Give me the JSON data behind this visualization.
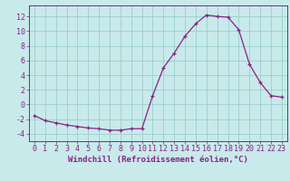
{
  "x": [
    0,
    1,
    2,
    3,
    4,
    5,
    6,
    7,
    8,
    9,
    10,
    11,
    12,
    13,
    14,
    15,
    16,
    17,
    18,
    19,
    20,
    21,
    22,
    23
  ],
  "y": [
    -1.5,
    -2.2,
    -2.5,
    -2.8,
    -3.0,
    -3.2,
    -3.3,
    -3.5,
    -3.5,
    -3.3,
    -3.3,
    1.2,
    5.0,
    7.0,
    9.3,
    11.0,
    12.2,
    12.0,
    11.9,
    10.2,
    5.5,
    3.0,
    1.2,
    1.0
  ],
  "line_color": "#882288",
  "marker": "+",
  "background_color": "#c8eaea",
  "grid_color": "#9dcece",
  "xlabel": "Windchill (Refroidissement éolien,°C)",
  "xlabel_fontsize": 6.5,
  "xtick_labels": [
    "0",
    "1",
    "2",
    "3",
    "4",
    "5",
    "6",
    "7",
    "8",
    "9",
    "10",
    "11",
    "12",
    "13",
    "14",
    "15",
    "16",
    "17",
    "18",
    "19",
    "20",
    "21",
    "22",
    "23"
  ],
  "ytick_values": [
    -4,
    -2,
    0,
    2,
    4,
    6,
    8,
    10,
    12
  ],
  "ylim": [
    -5.0,
    13.5
  ],
  "xlim": [
    -0.5,
    23.5
  ],
  "tick_color": "#882288",
  "tick_fontsize": 6.0,
  "spine_color": "#882288",
  "linewidth": 0.9,
  "markersize": 3.5,
  "markeredgewidth": 0.9
}
